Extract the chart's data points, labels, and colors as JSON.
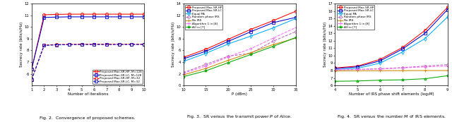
{
  "fig2": {
    "xlabel": "Number of iterations",
    "ylabel": "Secrecy rate (bits/s/Hz)",
    "ylim": [
      5,
      12
    ],
    "xlim": [
      1,
      10
    ],
    "yticks": [
      6,
      7,
      8,
      9,
      10,
      11,
      12
    ],
    "xticks": [
      1,
      2,
      3,
      4,
      5,
      6,
      7,
      8,
      9,
      10
    ],
    "caption": "Fig. 2.  Convergence of proposed schemes.",
    "legend_loc": "lower right",
    "lines": [
      {
        "label": "Proposed Max-SR-HP, M=128",
        "color": "#ff0000",
        "linestyle": "-",
        "marker": "o",
        "x": [
          1,
          2,
          3,
          4,
          5,
          6,
          7,
          8,
          9,
          10
        ],
        "y": [
          6.4,
          11.05,
          11.08,
          11.1,
          11.1,
          11.1,
          11.1,
          11.1,
          11.1,
          11.1
        ]
      },
      {
        "label": "Proposed Max-SR-LC, M=128",
        "color": "#0000cc",
        "linestyle": "-",
        "marker": "s",
        "x": [
          1,
          2,
          3,
          4,
          5,
          6,
          7,
          8,
          9,
          10
        ],
        "y": [
          6.4,
          10.82,
          10.85,
          10.87,
          10.87,
          10.87,
          10.87,
          10.87,
          10.87,
          10.87
        ]
      },
      {
        "label": "Proposed Max-SR-HP, M=32",
        "color": "#ff0000",
        "linestyle": "--",
        "marker": "o",
        "x": [
          1,
          2,
          3,
          4,
          5,
          6,
          7,
          8,
          9,
          10
        ],
        "y": [
          5.5,
          8.45,
          8.5,
          8.52,
          8.53,
          8.53,
          8.53,
          8.53,
          8.53,
          8.53
        ]
      },
      {
        "label": "Proposed Max-SR-LC, M=32",
        "color": "#0000cc",
        "linestyle": "--",
        "marker": "s",
        "x": [
          1,
          2,
          3,
          4,
          5,
          6,
          7,
          8,
          9,
          10
        ],
        "y": [
          5.5,
          8.42,
          8.47,
          8.49,
          8.5,
          8.5,
          8.5,
          8.5,
          8.5,
          8.5
        ]
      }
    ]
  },
  "fig3": {
    "xlabel": "P (dBm)",
    "ylabel": "Secrecy rate (bits/s/Hz)",
    "ylim": [
      0,
      14
    ],
    "xlim": [
      10,
      35
    ],
    "yticks": [
      0,
      2,
      4,
      6,
      8,
      10,
      12,
      14
    ],
    "xticks": [
      10,
      15,
      20,
      25,
      30,
      35
    ],
    "caption": "Fig. 3.  SR versus the transmit power $P$ of Alice.",
    "legend_loc": "upper left",
    "lines": [
      {
        "label": "Proposed Max-SR-HP",
        "color": "#ff0000",
        "linestyle": "-",
        "marker": "o",
        "x": [
          10,
          15,
          20,
          25,
          30,
          35
        ],
        "y": [
          4.8,
          6.2,
          7.9,
          9.6,
          11.1,
          12.7
        ]
      },
      {
        "label": "Proposed Max-SR-LC",
        "color": "#0000cc",
        "linestyle": "-",
        "marker": "s",
        "x": [
          10,
          15,
          20,
          25,
          30,
          35
        ],
        "y": [
          4.55,
          5.85,
          7.55,
          9.2,
          10.75,
          11.65
        ]
      },
      {
        "label": "Equal PA",
        "color": "#00aaff",
        "linestyle": "-",
        "marker": "d",
        "x": [
          10,
          15,
          20,
          25,
          30,
          35
        ],
        "y": [
          4.1,
          5.5,
          7.1,
          8.45,
          9.85,
          11.45
        ]
      },
      {
        "label": "Random phase IRS",
        "color": "#bb66bb",
        "linestyle": "--",
        "marker": "p",
        "x": [
          10,
          15,
          20,
          25,
          30,
          35
        ],
        "y": [
          2.2,
          3.6,
          5.0,
          5.5,
          7.6,
          9.2
        ]
      },
      {
        "label": "No IRS",
        "color": "#cc8800",
        "linestyle": "-",
        "marker": "+",
        "x": [
          10,
          15,
          20,
          25,
          30,
          35
        ],
        "y": [
          1.8,
          2.9,
          4.3,
          5.6,
          7.0,
          8.1
        ]
      },
      {
        "label": "Algorithm 1 in [8]",
        "color": "#ff66ff",
        "linestyle": "--",
        "marker": "+",
        "x": [
          10,
          15,
          20,
          25,
          30,
          35
        ],
        "y": [
          2.1,
          3.3,
          4.9,
          6.3,
          8.1,
          9.9
        ]
      },
      {
        "label": "AO in [7]",
        "color": "#00aa00",
        "linestyle": "-",
        "marker": "*",
        "x": [
          10,
          15,
          20,
          25,
          30,
          35
        ],
        "y": [
          1.5,
          2.5,
          3.9,
          5.3,
          6.7,
          8.2
        ]
      }
    ]
  },
  "fig4": {
    "xlabel": "Number of IRS phase shift elements (log₂M)",
    "ylabel": "Secrecy rate (bits/s/Hz)",
    "ylim": [
      6,
      17
    ],
    "xlim": [
      4,
      9
    ],
    "yticks": [
      6,
      7,
      8,
      9,
      10,
      11,
      12,
      13,
      14,
      15,
      16,
      17
    ],
    "xticks": [
      4,
      5,
      6,
      7,
      8,
      9
    ],
    "caption": "Fig. 4.  SR versus the number $M$ of IRS elements.",
    "legend_loc": "upper left",
    "lines": [
      {
        "label": "Proposed Max-SR-HP",
        "color": "#ff0000",
        "linestyle": "-",
        "marker": "o",
        "x": [
          4,
          5,
          6,
          7,
          8,
          9
        ],
        "y": [
          8.35,
          8.6,
          9.5,
          11.1,
          13.4,
          16.5
        ]
      },
      {
        "label": "Proposed Max-SR-LC",
        "color": "#0000cc",
        "linestyle": "-",
        "marker": "s",
        "x": [
          4,
          5,
          6,
          7,
          8,
          9
        ],
        "y": [
          8.25,
          8.5,
          9.3,
          10.9,
          13.0,
          16.2
        ]
      },
      {
        "label": "Equal PA",
        "color": "#00aaff",
        "linestyle": "-",
        "marker": "d",
        "x": [
          4,
          5,
          6,
          7,
          8,
          9
        ],
        "y": [
          8.1,
          8.3,
          9.0,
          10.5,
          12.3,
          15.2
        ]
      },
      {
        "label": "Random phase IRS",
        "color": "#bb66bb",
        "linestyle": "--",
        "marker": "p",
        "x": [
          4,
          5,
          6,
          7,
          8,
          9
        ],
        "y": [
          8.1,
          8.15,
          8.25,
          8.4,
          8.6,
          8.8
        ]
      },
      {
        "label": "No IRS",
        "color": "#cc8800",
        "linestyle": "-",
        "marker": "+",
        "x": [
          4,
          5,
          6,
          7,
          8,
          9
        ],
        "y": [
          7.95,
          7.97,
          7.98,
          7.99,
          8.0,
          8.0
        ]
      },
      {
        "label": "Algorithm 1 in [8]",
        "color": "#ff66ff",
        "linestyle": "--",
        "marker": "+",
        "x": [
          4,
          5,
          6,
          7,
          8,
          9
        ],
        "y": [
          8.1,
          8.15,
          8.2,
          8.35,
          8.5,
          8.6
        ]
      },
      {
        "label": "AO in [7]",
        "color": "#00aa00",
        "linestyle": "-",
        "marker": "*",
        "x": [
          4,
          5,
          6,
          7,
          8,
          9
        ],
        "y": [
          6.55,
          6.6,
          6.7,
          6.75,
          6.9,
          7.3
        ]
      }
    ]
  }
}
